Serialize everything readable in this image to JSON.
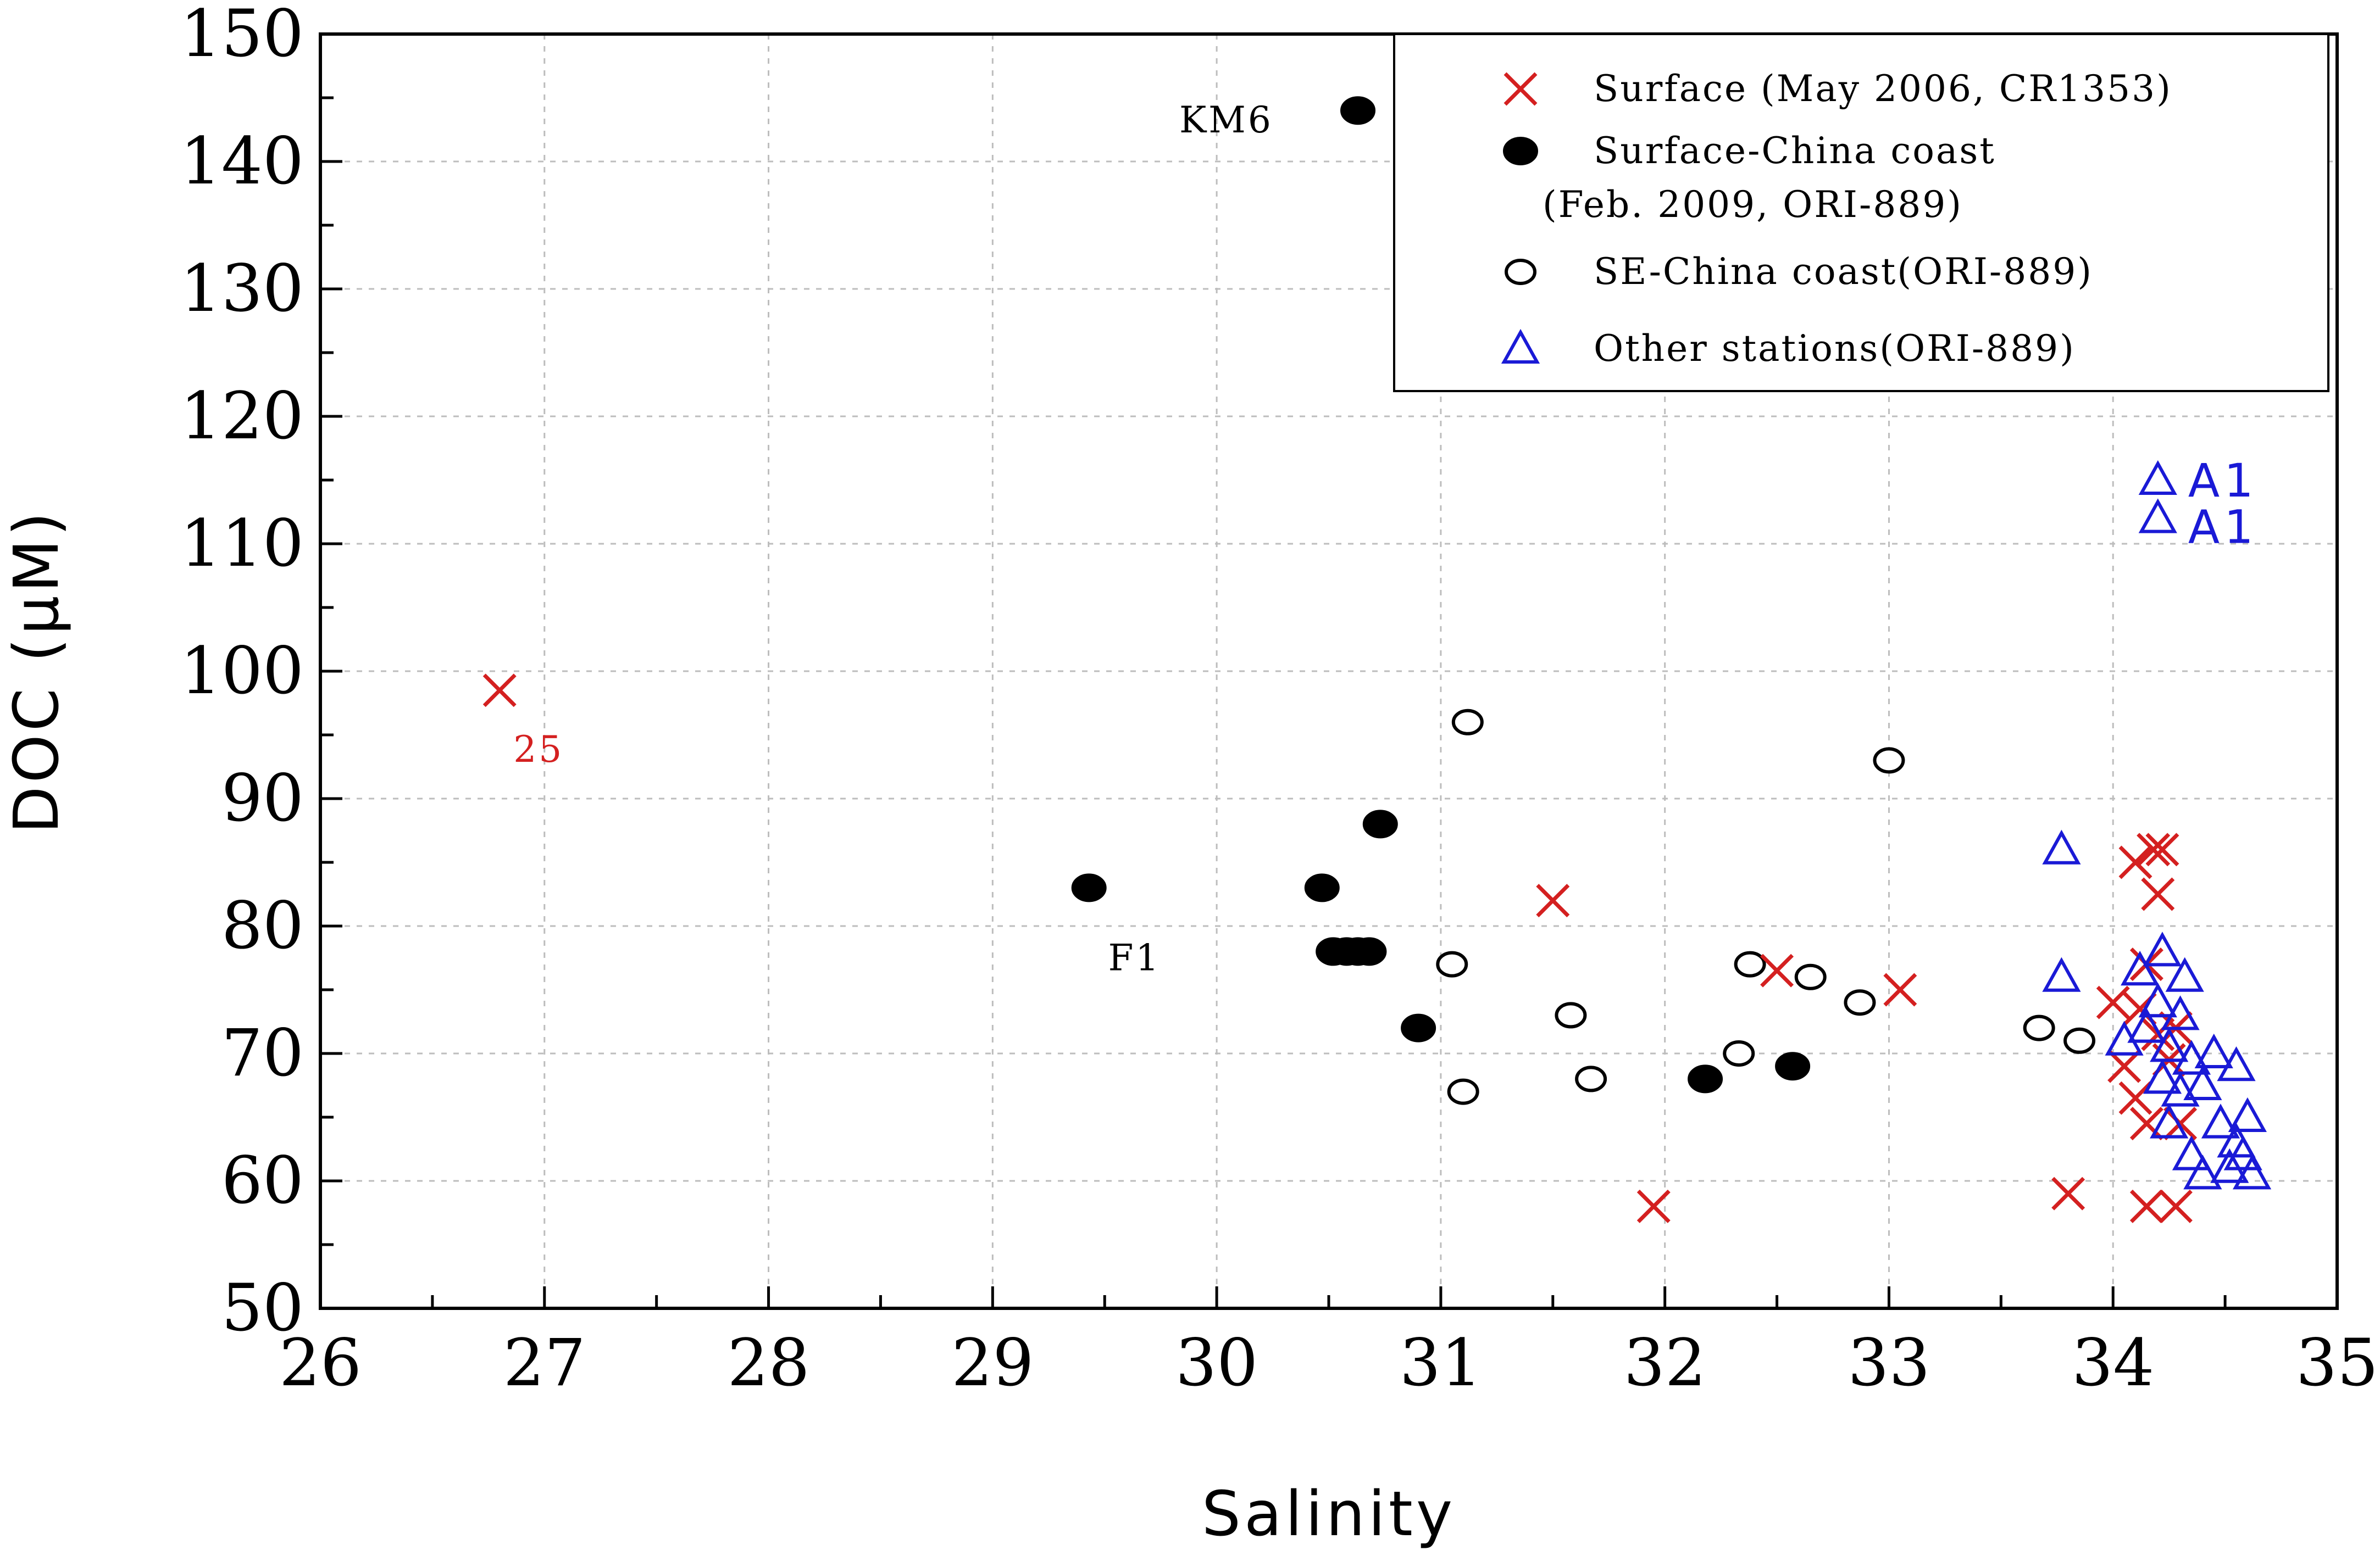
{
  "chart_data": {
    "type": "scatter",
    "title": "",
    "xlabel": "Salinity",
    "ylabel": "DOC (μM)",
    "xlim": [
      26,
      35
    ],
    "ylim": [
      50,
      150
    ],
    "x_ticks": [
      "26",
      "27",
      "28",
      "29",
      "30",
      "31",
      "32",
      "33",
      "34",
      "35"
    ],
    "y_ticks": [
      "50",
      "60",
      "70",
      "80",
      "90",
      "100",
      "110",
      "120",
      "130",
      "140",
      "150"
    ],
    "grid": "dotted",
    "legend_position": "top-right",
    "series": [
      {
        "name": "Surface (May 2006, CR1353)",
        "marker": "x",
        "color": "#d42020",
        "points": [
          [
            26.8,
            98.5
          ],
          [
            31.5,
            82
          ],
          [
            31.95,
            58
          ],
          [
            32.5,
            76.5
          ],
          [
            33.05,
            75
          ],
          [
            33.8,
            59
          ],
          [
            34.0,
            74
          ],
          [
            34.05,
            69
          ],
          [
            34.1,
            66.5
          ],
          [
            34.12,
            73.5
          ],
          [
            34.1,
            85
          ],
          [
            34.15,
            77
          ],
          [
            34.18,
            86
          ],
          [
            34.2,
            82.5
          ],
          [
            34.22,
            86
          ],
          [
            34.15,
            64.5
          ],
          [
            34.2,
            71.5
          ],
          [
            34.25,
            69.5
          ],
          [
            34.28,
            72
          ],
          [
            34.3,
            64.5
          ],
          [
            34.15,
            58
          ],
          [
            34.28,
            58
          ]
        ]
      },
      {
        "name": "Surface-China coast",
        "name_line2": "(Feb. 2009, ORI-889)",
        "marker": "filled-circle",
        "color": "#000000",
        "points": [
          [
            30.63,
            144
          ],
          [
            29.43,
            83
          ],
          [
            30.47,
            83
          ],
          [
            30.73,
            88
          ],
          [
            30.52,
            78
          ],
          [
            30.58,
            78
          ],
          [
            30.63,
            78
          ],
          [
            30.68,
            78
          ],
          [
            30.9,
            72
          ],
          [
            32.18,
            68
          ],
          [
            32.57,
            69
          ]
        ]
      },
      {
        "name": "SE-China coast(ORI-889)",
        "marker": "open-circle",
        "color": "#000000",
        "points": [
          [
            31.12,
            96
          ],
          [
            33.0,
            93
          ],
          [
            31.05,
            77
          ],
          [
            31.58,
            73
          ],
          [
            31.1,
            67
          ],
          [
            31.67,
            68
          ],
          [
            32.38,
            77
          ],
          [
            32.65,
            76
          ],
          [
            32.87,
            74
          ],
          [
            32.33,
            70
          ],
          [
            33.67,
            72
          ],
          [
            33.85,
            71
          ]
        ]
      },
      {
        "name": "Other stations(ORI-889)",
        "marker": "open-triangle",
        "color": "#1a1ad6",
        "points": [
          [
            34.2,
            115
          ],
          [
            34.2,
            112
          ],
          [
            33.77,
            86
          ],
          [
            33.77,
            76
          ],
          [
            34.12,
            76.5
          ],
          [
            34.22,
            78
          ],
          [
            34.32,
            76
          ],
          [
            34.05,
            71
          ],
          [
            34.15,
            72
          ],
          [
            34.2,
            74
          ],
          [
            34.25,
            70.5
          ],
          [
            34.3,
            73
          ],
          [
            34.35,
            69.5
          ],
          [
            34.22,
            68
          ],
          [
            34.3,
            67
          ],
          [
            34.4,
            67.5
          ],
          [
            34.45,
            70
          ],
          [
            34.55,
            69
          ],
          [
            34.25,
            64.5
          ],
          [
            34.35,
            62
          ],
          [
            34.4,
            60.5
          ],
          [
            34.48,
            64.5
          ],
          [
            34.52,
            61
          ],
          [
            34.58,
            62
          ],
          [
            34.6,
            65
          ],
          [
            34.62,
            60.5
          ],
          [
            34.55,
            63
          ]
        ]
      }
    ],
    "annotations": [
      {
        "text": "KM6",
        "color": "#000000"
      },
      {
        "text": "F1",
        "color": "#000000"
      },
      {
        "text": "25",
        "color": "#d42020"
      },
      {
        "text": "A1",
        "color": "#1a1ad6"
      },
      {
        "text": "A1",
        "color": "#1a1ad6"
      }
    ]
  }
}
